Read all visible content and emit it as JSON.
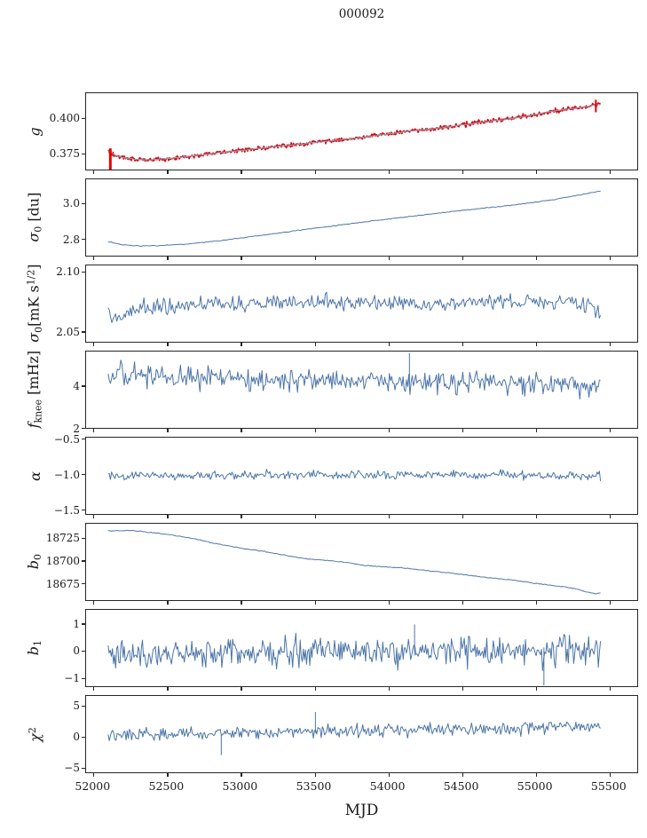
{
  "colors": {
    "series_blue": "#4a74a8",
    "series_red": "#e60000",
    "overlay_blue": "#8a9cba",
    "axis": "#262626",
    "background": "#ffffff"
  },
  "chart_data": {
    "type": "line",
    "title": "000092",
    "xlabel": "MJD",
    "grid": false,
    "legend": "none",
    "xlim": [
      51950,
      55700
    ],
    "xticks": [
      52000,
      52500,
      53000,
      53500,
      54000,
      54500,
      55000,
      55500
    ],
    "panels": [
      {
        "id": "g",
        "ylabel_parts": [
          {
            "t": "g",
            "s": "i"
          }
        ],
        "ylim": [
          0.3626,
          0.4175
        ],
        "yticks": [
          {
            "v": 0.4,
            "label": "0.400"
          },
          {
            "v": 0.375,
            "label": "0.375"
          }
        ],
        "series": [
          {
            "name": "raw",
            "color": "#e60000",
            "width": 1.6,
            "n": 700,
            "noise": 0.0013,
            "seed": 101,
            "anchors": [
              [
                52100,
                0.3758
              ],
              [
                52160,
                0.3722
              ],
              [
                52260,
                0.3701
              ],
              [
                52360,
                0.3696
              ],
              [
                52480,
                0.3702
              ],
              [
                52620,
                0.3718
              ],
              [
                52800,
                0.3741
              ],
              [
                53000,
                0.3763
              ],
              [
                53200,
                0.3786
              ],
              [
                53400,
                0.3809
              ],
              [
                53600,
                0.3831
              ],
              [
                53800,
                0.3854
              ],
              [
                54000,
                0.3881
              ],
              [
                54160,
                0.3904
              ],
              [
                54300,
                0.3918
              ],
              [
                54460,
                0.394
              ],
              [
                54620,
                0.3964
              ],
              [
                54780,
                0.3983
              ],
              [
                54920,
                0.4006
              ],
              [
                55020,
                0.4024
              ],
              [
                55120,
                0.4046
              ],
              [
                55220,
                0.4062
              ],
              [
                55320,
                0.4072
              ],
              [
                55400,
                0.4086
              ],
              [
                55450,
                0.4094
              ]
            ]
          },
          {
            "name": "smooth",
            "color": "#8a9cba",
            "width": 1.2,
            "n": 260,
            "noise": 0.00028,
            "seed": 102,
            "anchors": [
              [
                52100,
                0.3758
              ],
              [
                52160,
                0.3722
              ],
              [
                52260,
                0.3701
              ],
              [
                52360,
                0.3696
              ],
              [
                52480,
                0.3702
              ],
              [
                52620,
                0.3718
              ],
              [
                52800,
                0.3741
              ],
              [
                53000,
                0.3763
              ],
              [
                53200,
                0.3786
              ],
              [
                53400,
                0.3809
              ],
              [
                53600,
                0.3831
              ],
              [
                53800,
                0.3854
              ],
              [
                54000,
                0.3881
              ],
              [
                54160,
                0.3904
              ],
              [
                54300,
                0.3918
              ],
              [
                54460,
                0.394
              ],
              [
                54620,
                0.3964
              ],
              [
                54780,
                0.3983
              ],
              [
                54920,
                0.4006
              ],
              [
                55020,
                0.4024
              ],
              [
                55120,
                0.4046
              ],
              [
                55220,
                0.4062
              ],
              [
                55320,
                0.4072
              ],
              [
                55400,
                0.4086
              ],
              [
                55450,
                0.4094
              ]
            ]
          }
        ],
        "spikes": [
          {
            "x": 52115,
            "y0": 0.3622,
            "y1": 0.3778,
            "color": "#e60000",
            "w": 3
          },
          {
            "x": 55418,
            "y0": 0.4038,
            "y1": 0.4128,
            "color": "#e60000",
            "w": 2
          }
        ]
      },
      {
        "id": "sigma0-du",
        "ylabel_parts": [
          {
            "t": "σ",
            "s": "i"
          },
          {
            "t": "0",
            "s": "sub"
          },
          {
            "t": " [du]",
            "s": "n"
          }
        ],
        "ylim": [
          2.7,
          3.135
        ],
        "yticks": [
          {
            "v": 3.0,
            "label": "3.0"
          },
          {
            "v": 2.8,
            "label": "2.8"
          }
        ],
        "series": [
          {
            "name": "sigma0-du",
            "color": "#4a74a8",
            "width": 1.0,
            "n": 320,
            "noise": 0.002,
            "seed": 201,
            "anchors": [
              [
                52100,
                2.78
              ],
              [
                52200,
                2.762
              ],
              [
                52320,
                2.755
              ],
              [
                52450,
                2.757
              ],
              [
                52600,
                2.764
              ],
              [
                52800,
                2.78
              ],
              [
                53000,
                2.8
              ],
              [
                53200,
                2.822
              ],
              [
                53400,
                2.845
              ],
              [
                53600,
                2.866
              ],
              [
                53800,
                2.888
              ],
              [
                54000,
                2.908
              ],
              [
                54200,
                2.928
              ],
              [
                54400,
                2.948
              ],
              [
                54600,
                2.966
              ],
              [
                54800,
                2.984
              ],
              [
                55000,
                3.003
              ],
              [
                55150,
                3.022
              ],
              [
                55300,
                3.045
              ],
              [
                55380,
                3.057
              ],
              [
                55450,
                3.068
              ]
            ]
          }
        ],
        "spikes": []
      },
      {
        "id": "sigma0-mK",
        "ylabel_parts": [
          {
            "t": "σ",
            "s": "i"
          },
          {
            "t": "0",
            "s": "sub"
          },
          {
            "t": "[mK s",
            "s": "n"
          },
          {
            "t": "1/2",
            "s": "sup"
          },
          {
            "t": "]",
            "s": "n"
          }
        ],
        "ylim": [
          2.0403,
          2.1052
        ],
        "yticks": [
          {
            "v": 2.1,
            "label": "2.10"
          },
          {
            "v": 2.05,
            "label": "2.05"
          }
        ],
        "series": [
          {
            "name": "sigma0-mK",
            "color": "#4a74a8",
            "width": 1.0,
            "n": 400,
            "noise": 0.0058,
            "seed": 301,
            "anchors": [
              [
                52100,
                2.066
              ],
              [
                52160,
                2.06
              ],
              [
                52250,
                2.068
              ],
              [
                52500,
                2.071
              ],
              [
                53000,
                2.072
              ],
              [
                53300,
                2.0735
              ],
              [
                53500,
                2.0745
              ],
              [
                54000,
                2.0725
              ],
              [
                54500,
                2.0735
              ],
              [
                55000,
                2.073
              ],
              [
                55250,
                2.0735
              ],
              [
                55450,
                2.0675
              ]
            ]
          }
        ],
        "spikes": []
      },
      {
        "id": "fknee",
        "ylabel_parts": [
          {
            "t": "f",
            "s": "i"
          },
          {
            "t": "knee",
            "s": "sub"
          },
          {
            "t": " [mHz]",
            "s": "n"
          }
        ],
        "ylim": [
          1.95,
          5.62
        ],
        "yticks": [
          {
            "v": 4,
            "label": "4"
          },
          {
            "v": 2,
            "label": "2"
          }
        ],
        "series": [
          {
            "name": "fknee",
            "color": "#4a74a8",
            "width": 1.0,
            "n": 430,
            "noise": 0.45,
            "seed": 401,
            "anchors": [
              [
                52100,
                4.35
              ],
              [
                52200,
                4.55
              ],
              [
                52350,
                4.45
              ],
              [
                52600,
                4.35
              ],
              [
                53000,
                4.28
              ],
              [
                53500,
                4.22
              ],
              [
                54000,
                4.18
              ],
              [
                54500,
                4.15
              ],
              [
                55000,
                4.08
              ],
              [
                55450,
                3.98
              ]
            ]
          }
        ],
        "spikes": [
          {
            "x": 54150,
            "y0": 4.0,
            "y1": 5.55,
            "color": "#4a74a8",
            "w": 1
          }
        ]
      },
      {
        "id": "alpha",
        "ylabel_parts": [
          {
            "t": "α",
            "s": "i"
          }
        ],
        "ylim": [
          -1.578,
          -0.478
        ],
        "yticks": [
          {
            "v": -0.5,
            "label": "−0.5"
          },
          {
            "v": -1.0,
            "label": "−1.0"
          },
          {
            "v": -1.5,
            "label": "−1.5"
          }
        ],
        "series": [
          {
            "name": "alpha",
            "color": "#4a74a8",
            "width": 1.0,
            "n": 430,
            "noise": 0.052,
            "seed": 501,
            "anchors": [
              [
                52100,
                -1.035
              ],
              [
                52400,
                -1.03
              ],
              [
                53000,
                -1.025
              ],
              [
                53600,
                -1.015
              ],
              [
                54000,
                -1.02
              ],
              [
                54600,
                -1.015
              ],
              [
                55000,
                -1.02
              ],
              [
                55450,
                -1.025
              ]
            ]
          }
        ],
        "spikes": []
      },
      {
        "id": "b0",
        "ylabel_parts": [
          {
            "t": "b",
            "s": "i"
          },
          {
            "t": "0",
            "s": "sub"
          }
        ],
        "ylim": [
          18655,
          18741
        ],
        "yticks": [
          {
            "v": 18725,
            "label": "18725"
          },
          {
            "v": 18700,
            "label": "18700"
          },
          {
            "v": 18675,
            "label": "18675"
          }
        ],
        "series": [
          {
            "name": "b0",
            "color": "#4a74a8",
            "width": 1.0,
            "n": 300,
            "noise": 0.4,
            "seed": 601,
            "anchors": [
              [
                52100,
                18733
              ],
              [
                52250,
                18733.5
              ],
              [
                52400,
                18731
              ],
              [
                52550,
                18728
              ],
              [
                52700,
                18723.5
              ],
              [
                52850,
                18718
              ],
              [
                53000,
                18713.5
              ],
              [
                53150,
                18710
              ],
              [
                53300,
                18705.5
              ],
              [
                53450,
                18701.5
              ],
              [
                53600,
                18699.5
              ],
              [
                53750,
                18697
              ],
              [
                53850,
                18694
              ],
              [
                53950,
                18692.5
              ],
              [
                54100,
                18691.5
              ],
              [
                54250,
                18688.5
              ],
              [
                54400,
                18686
              ],
              [
                54550,
                18683
              ],
              [
                54700,
                18680
              ],
              [
                54850,
                18677.5
              ],
              [
                55000,
                18674
              ],
              [
                55150,
                18671
              ],
              [
                55250,
                18669
              ],
              [
                55350,
                18664.5
              ],
              [
                55420,
                18662.3
              ],
              [
                55450,
                18662.8
              ]
            ]
          }
        ],
        "spikes": []
      },
      {
        "id": "b1",
        "ylabel_parts": [
          {
            "t": "b",
            "s": "i"
          },
          {
            "t": "1",
            "s": "sub"
          }
        ],
        "ylim": [
          -1.36,
          1.52
        ],
        "yticks": [
          {
            "v": 1,
            "label": "1"
          },
          {
            "v": 0,
            "label": "0"
          },
          {
            "v": -1,
            "label": "−1"
          }
        ],
        "series": [
          {
            "name": "b1",
            "color": "#4a74a8",
            "width": 1.0,
            "n": 460,
            "noise": 0.46,
            "seed": 701,
            "anchors": [
              [
                52100,
                -0.12
              ],
              [
                53000,
                -0.1
              ],
              [
                54000,
                -0.05
              ],
              [
                55000,
                -0.03
              ],
              [
                55450,
                -0.05
              ]
            ]
          }
        ],
        "spikes": [
          {
            "x": 55065,
            "y0": -1.33,
            "y1": 0.1,
            "color": "#4a74a8",
            "w": 1
          },
          {
            "x": 54185,
            "y0": -0.2,
            "y1": 0.97,
            "color": "#4a74a8",
            "w": 1
          }
        ]
      },
      {
        "id": "chi2",
        "ylabel_parts": [
          {
            "t": "χ",
            "s": "i"
          },
          {
            "t": "2",
            "s": "sup"
          }
        ],
        "ylim": [
          -6.0,
          6.6
        ],
        "yticks": [
          {
            "v": 5,
            "label": "5"
          },
          {
            "v": 0,
            "label": "0"
          },
          {
            "v": -5,
            "label": "−5"
          }
        ],
        "series": [
          {
            "name": "chi2",
            "color": "#4a74a8",
            "width": 1.0,
            "n": 440,
            "noise": 0.95,
            "seed": 801,
            "anchors": [
              [
                52100,
                0.15
              ],
              [
                52600,
                0.25
              ],
              [
                53000,
                0.45
              ],
              [
                53400,
                0.7
              ],
              [
                53800,
                0.95
              ],
              [
                54200,
                1.05
              ],
              [
                54600,
                1.15
              ],
              [
                55000,
                1.4
              ],
              [
                55250,
                1.55
              ],
              [
                55450,
                1.45
              ]
            ]
          }
        ],
        "spikes": [
          {
            "x": 52870,
            "y0": -3.15,
            "y1": 0.2,
            "color": "#4a74a8",
            "w": 1
          },
          {
            "x": 53510,
            "y0": 0.5,
            "y1": 3.95,
            "color": "#4a74a8",
            "w": 1
          }
        ]
      }
    ]
  }
}
